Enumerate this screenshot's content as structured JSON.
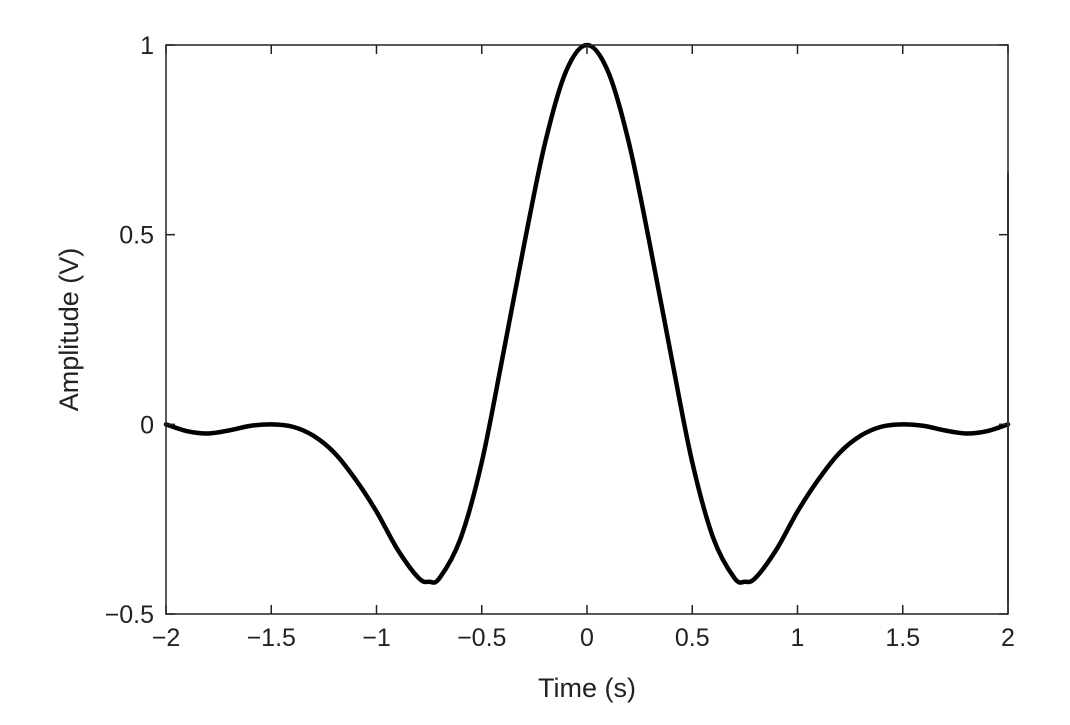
{
  "chart_data": {
    "type": "line",
    "title": "",
    "xlabel": "Time (s)",
    "ylabel": "Amplitude (V)",
    "xlim": [
      -2,
      2
    ],
    "ylim": [
      -0.5,
      1
    ],
    "xticks": [
      -2,
      -1.5,
      -1,
      -0.5,
      0,
      0.5,
      1,
      1.5,
      2
    ],
    "xtick_labels": [
      "−2",
      "−1.5",
      "−1",
      "−0.5",
      "0",
      "0.5",
      "1",
      "1.5",
      "2"
    ],
    "yticks": [
      -0.5,
      0,
      0.5,
      1
    ],
    "ytick_labels": [
      "−0.5",
      "0",
      "0.5",
      "1"
    ],
    "grid": false,
    "legend": "none",
    "series": [
      {
        "color": "#000000",
        "x": [
          -2,
          -1.9,
          -1.8,
          -1.7,
          -1.6,
          -1.5,
          -1.4,
          -1.3,
          -1.2,
          -1.1,
          -1.0,
          -0.9,
          -0.8,
          -0.75,
          -0.7,
          -0.6,
          -0.5,
          -0.4,
          -0.3,
          -0.2,
          -0.1,
          0,
          0.1,
          0.2,
          0.3,
          0.4,
          0.5,
          0.6,
          0.7,
          0.75,
          0.8,
          0.9,
          1.0,
          1.1,
          1.2,
          1.3,
          1.4,
          1.5,
          1.6,
          1.7,
          1.8,
          1.9,
          2
        ],
        "y": [
          0,
          -0.018,
          -0.024,
          -0.016,
          -0.004,
          0,
          -0.006,
          -0.03,
          -0.075,
          -0.145,
          -0.23,
          -0.33,
          -0.405,
          -0.415,
          -0.405,
          -0.3,
          -0.1,
          0.18,
          0.47,
          0.74,
          0.93,
          1.0,
          0.93,
          0.74,
          0.47,
          0.18,
          -0.1,
          -0.3,
          -0.405,
          -0.415,
          -0.405,
          -0.33,
          -0.23,
          -0.145,
          -0.075,
          -0.03,
          -0.006,
          0,
          -0.004,
          -0.016,
          -0.024,
          -0.018,
          0
        ]
      }
    ]
  }
}
